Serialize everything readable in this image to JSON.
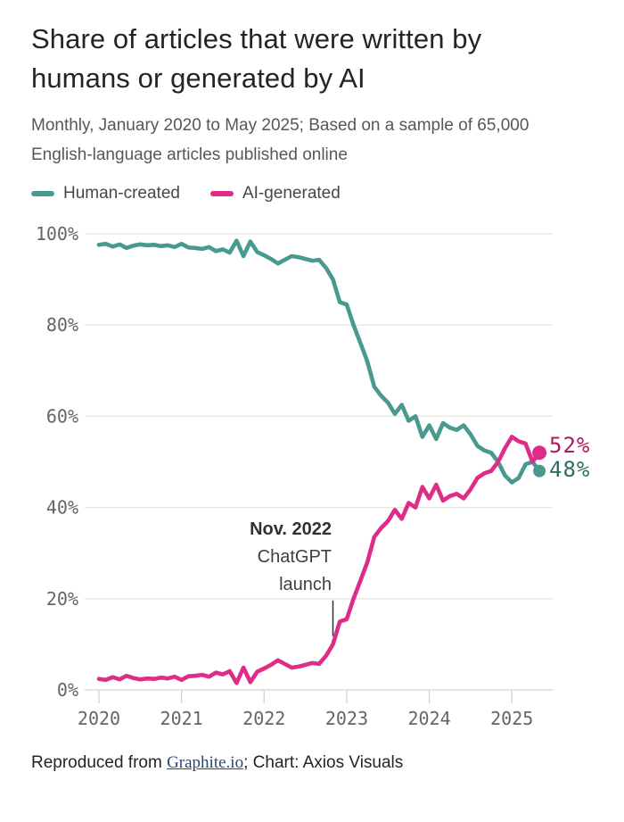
{
  "header": {
    "title": "Share of articles that were written by humans or generated by AI",
    "subtitle": "Monthly, January 2020 to May 2025; Based on a sample of 65,000 English-language articles published online"
  },
  "legend": [
    {
      "label": "Human-created",
      "color": "#479a8d"
    },
    {
      "label": "AI-generated",
      "color": "#dd2d87"
    }
  ],
  "chart_data": {
    "type": "line",
    "title": "Share of articles that were written by humans or generated by AI",
    "x": [
      "2020-01",
      "2020-02",
      "2020-03",
      "2020-04",
      "2020-05",
      "2020-06",
      "2020-07",
      "2020-08",
      "2020-09",
      "2020-10",
      "2020-11",
      "2020-12",
      "2021-01",
      "2021-02",
      "2021-03",
      "2021-04",
      "2021-05",
      "2021-06",
      "2021-07",
      "2021-08",
      "2021-09",
      "2021-10",
      "2021-11",
      "2021-12",
      "2022-01",
      "2022-02",
      "2022-03",
      "2022-04",
      "2022-05",
      "2022-06",
      "2022-07",
      "2022-08",
      "2022-09",
      "2022-10",
      "2022-11",
      "2022-12",
      "2023-01",
      "2023-02",
      "2023-03",
      "2023-04",
      "2023-05",
      "2023-06",
      "2023-07",
      "2023-08",
      "2023-09",
      "2023-10",
      "2023-11",
      "2023-12",
      "2024-01",
      "2024-02",
      "2024-03",
      "2024-04",
      "2024-05",
      "2024-06",
      "2024-07",
      "2024-08",
      "2024-09",
      "2024-10",
      "2024-11",
      "2024-12",
      "2025-01",
      "2025-02",
      "2025-03",
      "2025-04",
      "2025-05"
    ],
    "series": [
      {
        "name": "Human-created",
        "color": "#479a8d",
        "end_label": "48%",
        "end_label_color": "#2d6e63",
        "end_dot": true,
        "values": [
          97.6,
          97.8,
          97.2,
          97.7,
          96.9,
          97.4,
          97.7,
          97.5,
          97.6,
          97.3,
          97.5,
          97.1,
          97.8,
          97.0,
          96.9,
          96.7,
          97.1,
          96.2,
          96.6,
          95.9,
          98.5,
          95.1,
          98.3,
          96.0,
          95.3,
          94.5,
          93.5,
          94.3,
          95.1,
          94.9,
          94.5,
          94.1,
          94.3,
          92.5,
          90.0,
          85.0,
          84.5,
          80.0,
          76.0,
          72.0,
          66.5,
          64.5,
          63.0,
          60.5,
          62.5,
          59.0,
          60.0,
          55.5,
          58.0,
          55.0,
          58.5,
          57.5,
          57.0,
          58.0,
          56.0,
          53.5,
          52.5,
          52.0,
          50.0,
          47.0,
          45.5,
          46.5,
          49.5,
          50.0,
          48.0
        ]
      },
      {
        "name": "AI-generated",
        "color": "#dd2d87",
        "end_label": "52%",
        "end_label_color": "#ad1b61",
        "end_dot": true,
        "values": [
          2.4,
          2.2,
          2.8,
          2.3,
          3.1,
          2.6,
          2.3,
          2.5,
          2.4,
          2.7,
          2.5,
          2.9,
          2.2,
          3.0,
          3.1,
          3.3,
          2.9,
          3.8,
          3.4,
          4.1,
          1.5,
          4.9,
          1.7,
          4.0,
          4.7,
          5.5,
          6.5,
          5.7,
          4.9,
          5.1,
          5.5,
          5.9,
          5.7,
          7.5,
          10.0,
          15.0,
          15.5,
          20.0,
          24.0,
          28.0,
          33.5,
          35.5,
          37.0,
          39.5,
          37.5,
          41.0,
          40.0,
          44.5,
          42.0,
          45.0,
          41.5,
          42.5,
          43.0,
          42.0,
          44.0,
          46.5,
          47.5,
          48.0,
          50.0,
          53.0,
          55.5,
          54.5,
          54.0,
          50.0,
          52.0
        ]
      }
    ],
    "ylim": [
      0,
      100
    ],
    "y_ticks": [
      "0%",
      "20%",
      "40%",
      "60%",
      "80%",
      "100%"
    ],
    "x_ticks": [
      "2020",
      "2021",
      "2022",
      "2023",
      "2024",
      "2025"
    ],
    "grid": "horizontal",
    "legend_position": "top",
    "annotation": {
      "lines": [
        "Nov. 2022",
        "ChatGPT",
        "launch"
      ],
      "marker_month": "2022-11",
      "marker_y_pct": [
        11.8,
        19.6
      ]
    }
  },
  "end_labels": {
    "ai": "52%",
    "human": "48%"
  },
  "footer": {
    "prefix": "Reproduced from ",
    "link": "Graphite.io",
    "suffix": "; Chart: Axios Visuals",
    "link_color": "#24477e"
  }
}
